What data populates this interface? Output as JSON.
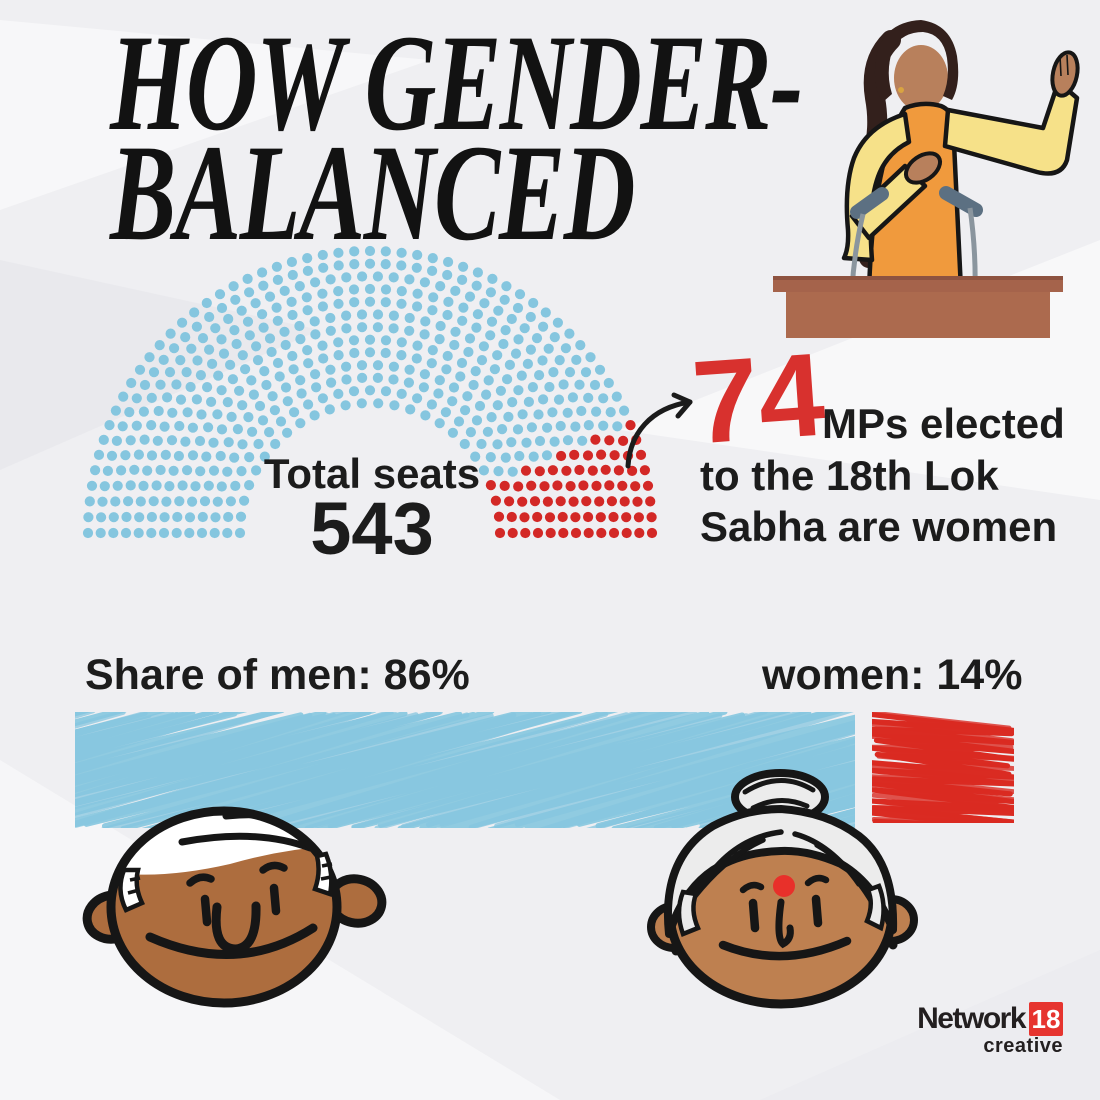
{
  "title": {
    "line1": "HOW GENDER-",
    "line2": "BALANCED"
  },
  "seat_chart": {
    "center_label": "Total seats",
    "center_value": "543"
  },
  "annotation": {
    "value": "74",
    "line1": "MPs elected",
    "line2": "to the 18th Lok",
    "line3": "Sabha are women"
  },
  "share_bar": {
    "men_label": "Share of men: 86%",
    "women_label": "women: 14%"
  },
  "logo": {
    "network": "Network",
    "eighteen": "18",
    "creative": "creative"
  },
  "colors": {
    "background": "#EFEFF2",
    "ink": "#1C1C1C",
    "accent_red_text": "#D8312E",
    "seat_men_blue": "#85C6DF",
    "seat_women_red": "#D32826",
    "bar_men_blue": "#85C6DF",
    "bar_women_red": "#DA2B22",
    "logo_red": "#E6342F"
  },
  "chart_data": [
    {
      "type": "parliament-dot-arc",
      "title": "Total seats 543",
      "total_seats": 543,
      "women_seats": 74,
      "men_seats": 469,
      "series": [
        {
          "name": "Men MPs",
          "value": 469,
          "color": "#85C6DF"
        },
        {
          "name": "Women MPs",
          "value": 74,
          "color": "#D32826"
        }
      ],
      "annotation": "74 MPs elected to the 18th Lok Sabha are women"
    },
    {
      "type": "bar",
      "categories": [
        "Share of men",
        "women"
      ],
      "values": [
        86,
        14
      ],
      "unit": "%",
      "colors": [
        "#85C6DF",
        "#DA2B22"
      ],
      "labels": [
        "Share of men: 86%",
        "women: 14%"
      ]
    }
  ]
}
